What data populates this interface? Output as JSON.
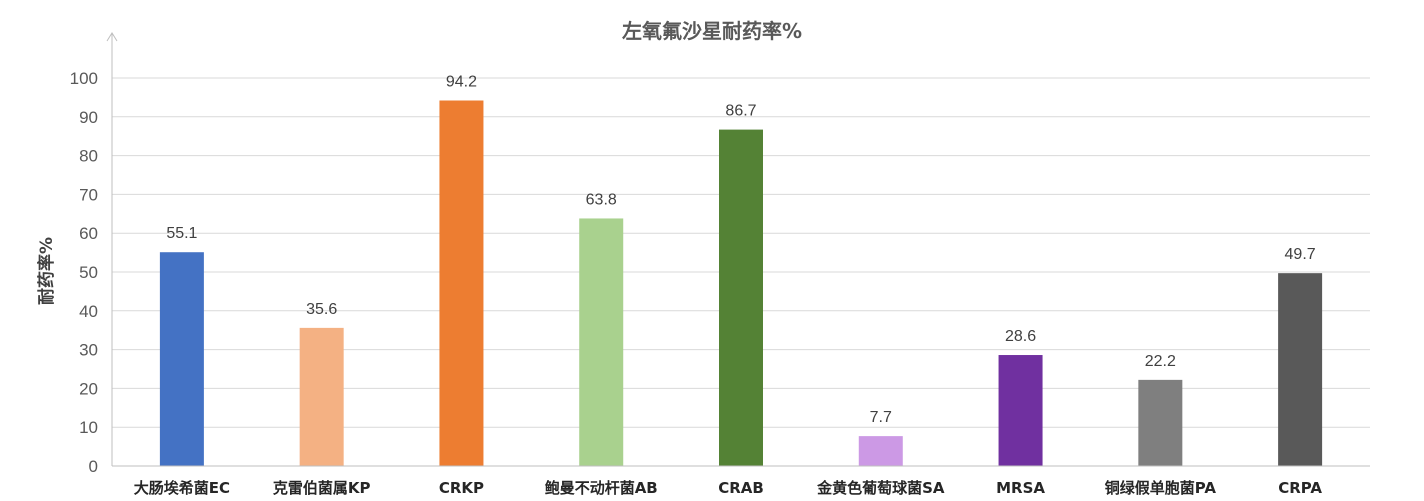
{
  "chart_data": {
    "type": "bar",
    "title": "左氧氟沙星耐药率%",
    "xlabel": "",
    "ylabel": "耐药率%",
    "ylim": [
      0,
      100
    ],
    "yticks": [
      0,
      10,
      20,
      30,
      40,
      50,
      60,
      70,
      80,
      90,
      100
    ],
    "grid": true,
    "categories": [
      "大肠埃希菌EC",
      "克雷伯菌属KP",
      "CRKP",
      "鲍曼不动杆菌AB",
      "CRAB",
      "金黄色葡萄球菌SA",
      "MRSA",
      "铜绿假单胞菌PA",
      "CRPA"
    ],
    "values": [
      55.1,
      35.6,
      94.2,
      63.8,
      86.7,
      7.7,
      28.6,
      22.2,
      49.7
    ],
    "data_labels": [
      "55.1",
      "35.6",
      "94.2",
      "63.8",
      "86.7",
      "7.7",
      "28.6",
      "22.2",
      "49.7"
    ],
    "colors": [
      "#4472c4",
      "#f4b183",
      "#ed7d31",
      "#a9d18e",
      "#548235",
      "#cc99e5",
      "#7030a0",
      "#7f7f7f",
      "#595959"
    ]
  }
}
